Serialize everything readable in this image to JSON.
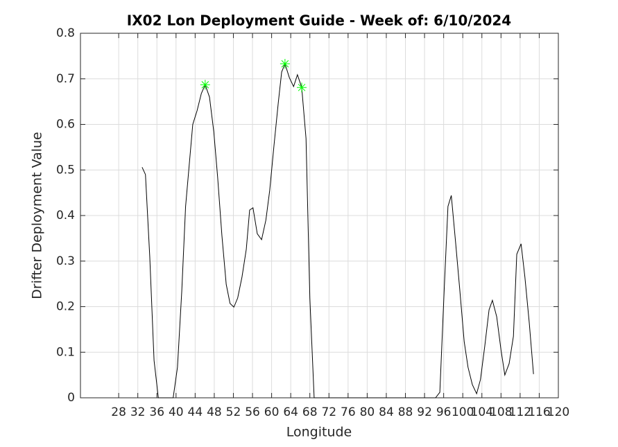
{
  "chart_data": {
    "type": "line",
    "title": "IX02 Lon Deployment Guide - Week of: 6/10/2024",
    "xlabel": "Longitude",
    "ylabel": "Drifter Deployment Value",
    "xlim": [
      20,
      120
    ],
    "ylim": [
      0,
      0.8
    ],
    "xticks": [
      28,
      32,
      36,
      40,
      44,
      48,
      52,
      56,
      60,
      64,
      68,
      72,
      76,
      80,
      84,
      88,
      92,
      96,
      100,
      104,
      108,
      112,
      116,
      120
    ],
    "yticks": [
      0,
      0.1,
      0.2,
      0.3,
      0.4,
      0.5,
      0.6,
      0.7,
      0.8
    ],
    "grid": true,
    "color": "#000000",
    "x": [
      32.9,
      33.6,
      34.5,
      35.4,
      36.3,
      39.4,
      40.3,
      41.2,
      42.0,
      43.5,
      44.4,
      45.3,
      46.1,
      47.0,
      47.9,
      48.7,
      49.6,
      50.5,
      51.3,
      52.1,
      52.9,
      53.8,
      54.7,
      55.4,
      56.1,
      57.0,
      57.9,
      58.8,
      59.6,
      60.5,
      61.4,
      62.1,
      62.8,
      63.7,
      64.6,
      65.4,
      66.3,
      67.2,
      68.0,
      68.9,
      94.3,
      95.2,
      96.1,
      96.9,
      97.6,
      98.5,
      99.4,
      100.3,
      101.1,
      102.0,
      102.9,
      103.7,
      104.6,
      105.5,
      106.2,
      107.1,
      108.0,
      108.8,
      109.7,
      110.6,
      111.3,
      112.2,
      113.0,
      113.9,
      114.8
    ],
    "values": [
      0.506,
      0.49,
      0.31,
      0.082,
      0,
      0,
      0.067,
      0.234,
      0.42,
      0.6,
      0.63,
      0.668,
      0.687,
      0.66,
      0.584,
      0.485,
      0.356,
      0.249,
      0.207,
      0.199,
      0.219,
      0.265,
      0.326,
      0.412,
      0.417,
      0.36,
      0.347,
      0.39,
      0.455,
      0.554,
      0.648,
      0.715,
      0.733,
      0.703,
      0.683,
      0.709,
      0.681,
      0.569,
      0.219,
      0,
      0,
      0.012,
      0.234,
      0.42,
      0.444,
      0.341,
      0.234,
      0.123,
      0.067,
      0.029,
      0.009,
      0.04,
      0.113,
      0.193,
      0.214,
      0.178,
      0.105,
      0.05,
      0.075,
      0.135,
      0.315,
      0.338,
      0.265,
      0.166,
      0.052
    ],
    "peaks": {
      "color": "#00ff00",
      "x": [
        46.1,
        62.8,
        66.3
      ],
      "values": [
        0.687,
        0.733,
        0.681
      ]
    }
  }
}
